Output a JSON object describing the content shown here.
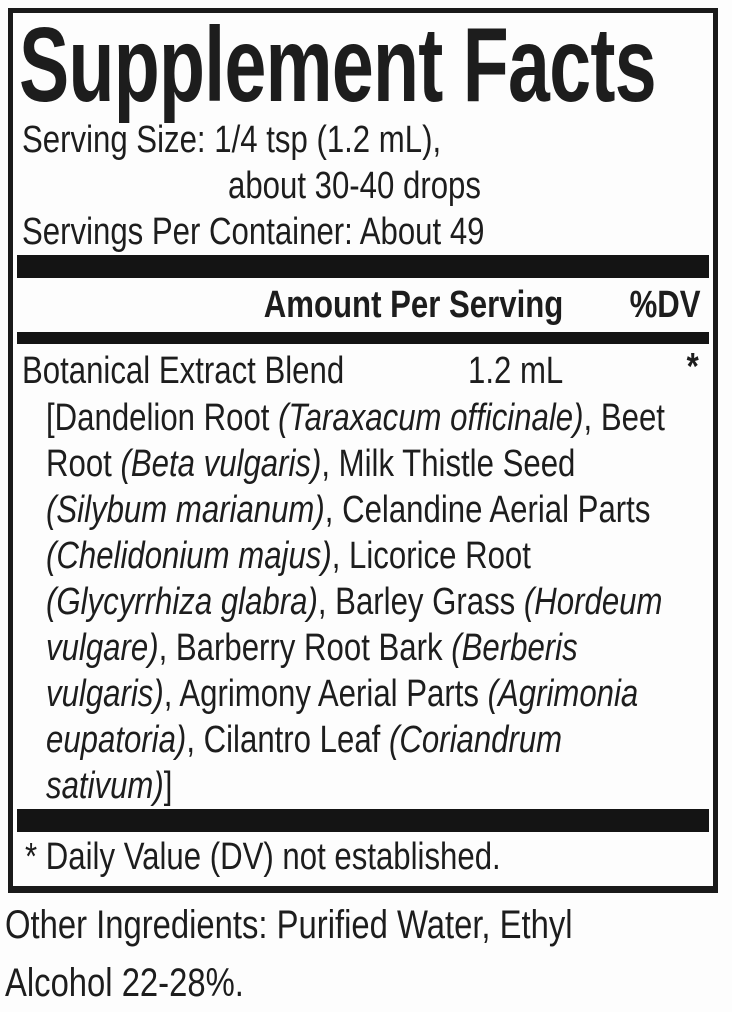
{
  "label": {
    "title": "Supplement Facts",
    "serving_size_line1": "Serving Size: 1/4 tsp (1.2 mL),",
    "serving_size_line2": "about 30-40 drops",
    "servings_per_container": "Servings Per Container: About 49",
    "header": {
      "amount_per_serving": "Amount Per Serving",
      "dv": "%DV"
    },
    "blend": {
      "name": "Botanical Extract Blend",
      "amount": "1.2 mL",
      "dv_value": "*"
    },
    "ingredient_lines": [
      [
        {
          "t": "[Dandelion Root "
        },
        {
          "t": "(Taraxacum officinale)",
          "i": true
        },
        {
          "t": ", Beet"
        }
      ],
      [
        {
          "t": "Root "
        },
        {
          "t": "(Beta vulgaris)",
          "i": true
        },
        {
          "t": ", Milk Thistle Seed"
        }
      ],
      [
        {
          "t": "(Silybum marianum)",
          "i": true
        },
        {
          "t": ", Celandine Aerial Parts"
        }
      ],
      [
        {
          "t": "(Chelidonium majus)",
          "i": true
        },
        {
          "t": ", Licorice Root"
        }
      ],
      [
        {
          "t": "(Glycyrrhiza glabra)",
          "i": true
        },
        {
          "t": ", Barley Grass "
        },
        {
          "t": "(Hordeum",
          "i": true
        }
      ],
      [
        {
          "t": "vulgare)",
          "i": true
        },
        {
          "t": ", Barberry Root Bark "
        },
        {
          "t": "(Berberis",
          "i": true
        }
      ],
      [
        {
          "t": "vulgaris)",
          "i": true
        },
        {
          "t": ", Agrimony Aerial Parts "
        },
        {
          "t": "(Agrimonia",
          "i": true
        }
      ],
      [
        {
          "t": "eupatoria)",
          "i": true
        },
        {
          "t": ", Cilantro Leaf "
        },
        {
          "t": "(Coriandrum",
          "i": true
        }
      ],
      [
        {
          "t": "sativum)",
          "i": true
        },
        {
          "t": "]"
        }
      ]
    ],
    "footnote": "* Daily Value (DV) not established."
  },
  "other_ingredients": {
    "line1": "Other Ingredients: Purified Water, Ethyl",
    "line2": "Alcohol 22-28%."
  },
  "colors": {
    "ink": "#1d1d1d",
    "bar": "#141414",
    "border": "#1a1a1a",
    "background": "#fdfdfd"
  }
}
